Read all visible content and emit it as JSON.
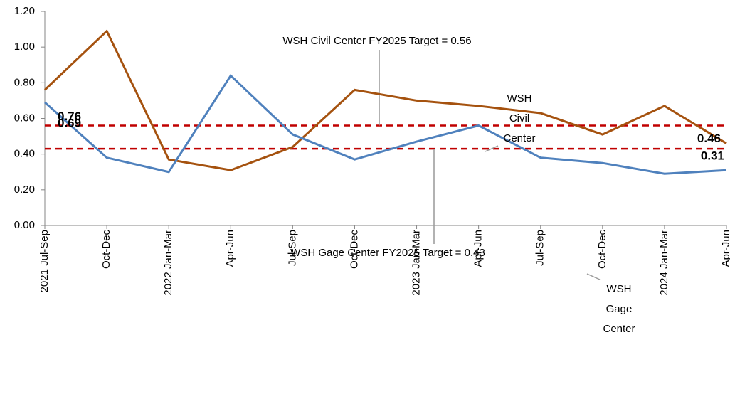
{
  "chart_data": {
    "type": "line",
    "categories": [
      "2021 Jul-Sep",
      "Oct-Dec",
      "2022 Jan-Mar",
      "Apr-Jun",
      "Jul-Sep",
      "Oct-Dec",
      "2023 Jan-Mar",
      "Apr-Jun",
      "Jul-Sep",
      "Oct-Dec",
      "2024 Jan-Mar",
      "Apr-Jun"
    ],
    "series": [
      {
        "name": [
          "WSH",
          "Civil",
          "Center"
        ],
        "color": "#a5520f",
        "values": [
          0.76,
          1.09,
          0.37,
          0.31,
          0.44,
          0.76,
          0.7,
          0.67,
          0.63,
          0.51,
          0.67,
          0.46
        ]
      },
      {
        "name": [
          "WSH",
          "Gage",
          "Center"
        ],
        "color": "#4f81bd",
        "values": [
          0.69,
          0.38,
          0.3,
          0.84,
          0.51,
          0.37,
          0.47,
          0.56,
          0.38,
          0.35,
          0.29,
          0.31
        ]
      }
    ],
    "targets": [
      {
        "value": 0.56,
        "label": "WSH Civil Center FY2025 Target = 0.56",
        "color": "#c00000"
      },
      {
        "value": 0.43,
        "label": "WSH Gage Center FY2025 Target  = 0.43",
        "color": "#c00000"
      }
    ],
    "ylim": [
      0,
      1.2
    ],
    "yticks": [
      {
        "value": 0,
        "label": "0.00"
      },
      {
        "value": 0.2,
        "label": "0.20"
      },
      {
        "value": 0.4,
        "label": "0.40"
      },
      {
        "value": 0.6,
        "label": "0.60"
      },
      {
        "value": 0.8,
        "label": "0.80"
      },
      {
        "value": 1.0,
        "label": "1.00"
      },
      {
        "value": 1.2,
        "label": "1.20"
      }
    ]
  }
}
